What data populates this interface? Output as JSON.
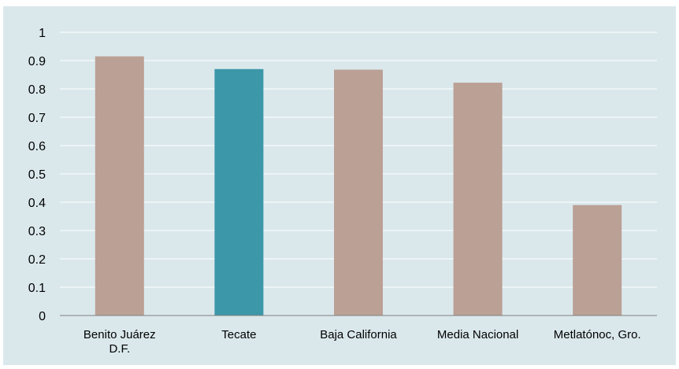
{
  "chart_data": {
    "type": "bar",
    "categories": [
      [
        "Benito Juárez",
        "D.F."
      ],
      [
        "Tecate"
      ],
      [
        "Baja California"
      ],
      [
        "Media Nacional"
      ],
      [
        "Metlatónoc, Gro."
      ]
    ],
    "values": [
      0.915,
      0.87,
      0.868,
      0.822,
      0.39
    ],
    "highlight_index": 1,
    "ylim": [
      0,
      1
    ],
    "yticks": [
      "0",
      "0.1",
      "0.2",
      "0.3",
      "0.4",
      "0.5",
      "0.6",
      "0.7",
      "0.8",
      "0.9",
      "1"
    ],
    "grid": true,
    "legend": "none",
    "colors": {
      "background": "#dae8ec",
      "bar": "#bba095",
      "highlight": "#3c97a9",
      "grid": "#ffffff",
      "axis": "#808080"
    }
  }
}
